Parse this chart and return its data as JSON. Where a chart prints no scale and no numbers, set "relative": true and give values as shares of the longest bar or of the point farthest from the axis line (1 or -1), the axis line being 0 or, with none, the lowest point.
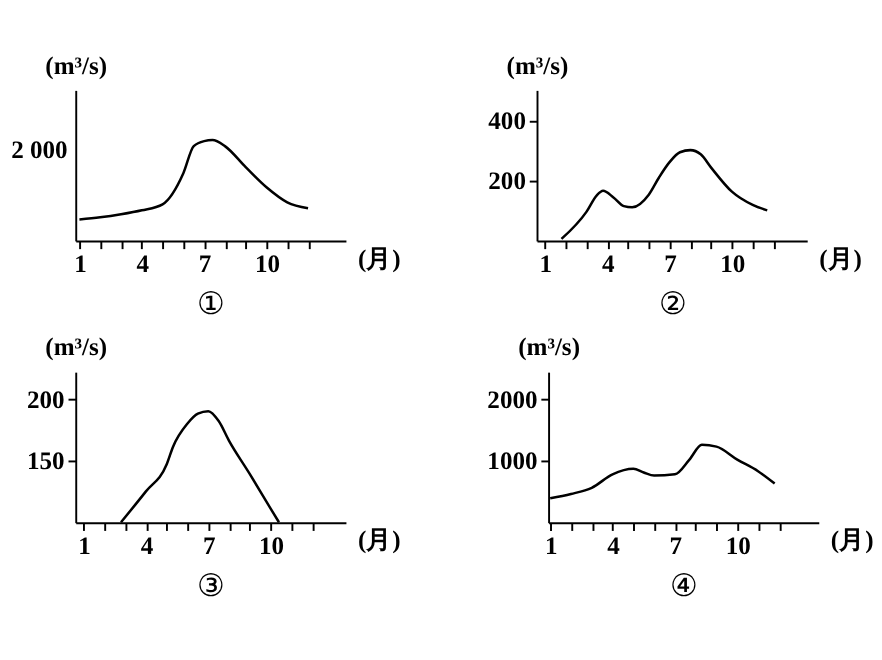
{
  "chart_data": [
    {
      "type": "line",
      "title": "①",
      "xlabel": "(月)",
      "ylabel": "(m³/s)",
      "relative": true,
      "color": "#000000",
      "x": [
        1,
        2,
        3,
        4,
        5,
        6,
        6.5,
        7,
        7.4,
        8,
        9,
        10,
        11,
        12
      ],
      "values": [
        0.21,
        0.23,
        0.26,
        0.3,
        0.36,
        0.67,
        0.94,
        0.99,
        1.0,
        0.94,
        0.73,
        0.53,
        0.38,
        0.32
      ],
      "xlim": [
        0.8,
        13.8
      ],
      "annotations": [
        "2 000"
      ],
      "xticks": [
        1,
        {
          "value": 2,
          "label": null
        },
        {
          "value": 3,
          "label": null
        },
        4,
        {
          "value": 5,
          "label": null
        },
        {
          "value": 6,
          "label": null
        },
        7,
        {
          "value": 8,
          "label": null
        },
        {
          "value": 9,
          "label": null
        },
        10,
        {
          "value": 11,
          "label": null
        },
        {
          "value": 12,
          "label": null
        }
      ],
      "tick_labels": "x"
    },
    {
      "type": "line",
      "title": "②",
      "xlabel": "(月)",
      "ylabel": "(m³/s)",
      "color": "#000000",
      "x": [
        1.8,
        3,
        3.5,
        3.8,
        4.3,
        4.8,
        5.2,
        6,
        6.5,
        7,
        7.5,
        8,
        8.5,
        9,
        10,
        11,
        11.7
      ],
      "values": [
        5,
        95,
        150,
        165,
        143,
        114,
        110,
        152,
        210,
        260,
        293,
        300,
        286,
        242,
        162,
        118,
        100
      ],
      "xlim": [
        0.6,
        13.6
      ],
      "ylim": [
        0,
        500
      ],
      "xticks": [
        1,
        {
          "value": 2,
          "label": null
        },
        {
          "value": 3,
          "label": null
        },
        4,
        {
          "value": 5,
          "label": null
        },
        {
          "value": 6,
          "label": null
        },
        7,
        {
          "value": 8,
          "label": null
        },
        {
          "value": 9,
          "label": null
        },
        10,
        {
          "value": 11,
          "label": null
        },
        {
          "value": 12,
          "label": null
        }
      ],
      "yticks": [
        200,
        400
      ]
    },
    {
      "type": "line",
      "title": "③",
      "xlabel": "(月)",
      "ylabel": "(m³/s)",
      "color": "#000000",
      "x": [
        2.8,
        4,
        5,
        5.3,
        6,
        6.5,
        7,
        7.5,
        8,
        9,
        10,
        10.4
      ],
      "values": [
        100,
        125,
        147,
        161,
        180,
        188,
        190,
        182,
        166,
        139,
        111,
        100
      ],
      "xlim": [
        0.6,
        13.6
      ],
      "ylim": [
        100,
        222
      ],
      "xticks": [
        1,
        {
          "value": 2,
          "label": null
        },
        {
          "value": 3,
          "label": null
        },
        4,
        {
          "value": 5,
          "label": null
        },
        {
          "value": 6,
          "label": null
        },
        7,
        {
          "value": 8,
          "label": null
        },
        {
          "value": 9,
          "label": null
        },
        10,
        {
          "value": 11,
          "label": null
        },
        {
          "value": 12,
          "label": null
        }
      ],
      "yticks": [
        150,
        200
      ]
    },
    {
      "type": "line",
      "title": "④",
      "xlabel": "(月)",
      "ylabel": "(m³/s)",
      "color": "#000000",
      "x": [
        1,
        2,
        3,
        4,
        5,
        5.5,
        6,
        7,
        7.7,
        8.3,
        9,
        10,
        11,
        11.8
      ],
      "values": [
        390,
        460,
        560,
        780,
        870,
        810,
        760,
        780,
        1020,
        1260,
        1230,
        1020,
        830,
        630
      ],
      "xlim": [
        0.9,
        13.9
      ],
      "ylim": [
        0,
        2450
      ],
      "xticks": [
        1,
        {
          "value": 2,
          "label": null
        },
        {
          "value": 3,
          "label": null
        },
        4,
        {
          "value": 5,
          "label": null
        },
        {
          "value": 6,
          "label": null
        },
        7,
        {
          "value": 8,
          "label": null
        },
        {
          "value": 9,
          "label": null
        },
        10,
        {
          "value": 11,
          "label": null
        },
        {
          "value": 12,
          "label": null
        }
      ],
      "yticks": [
        1000,
        2000
      ]
    }
  ]
}
